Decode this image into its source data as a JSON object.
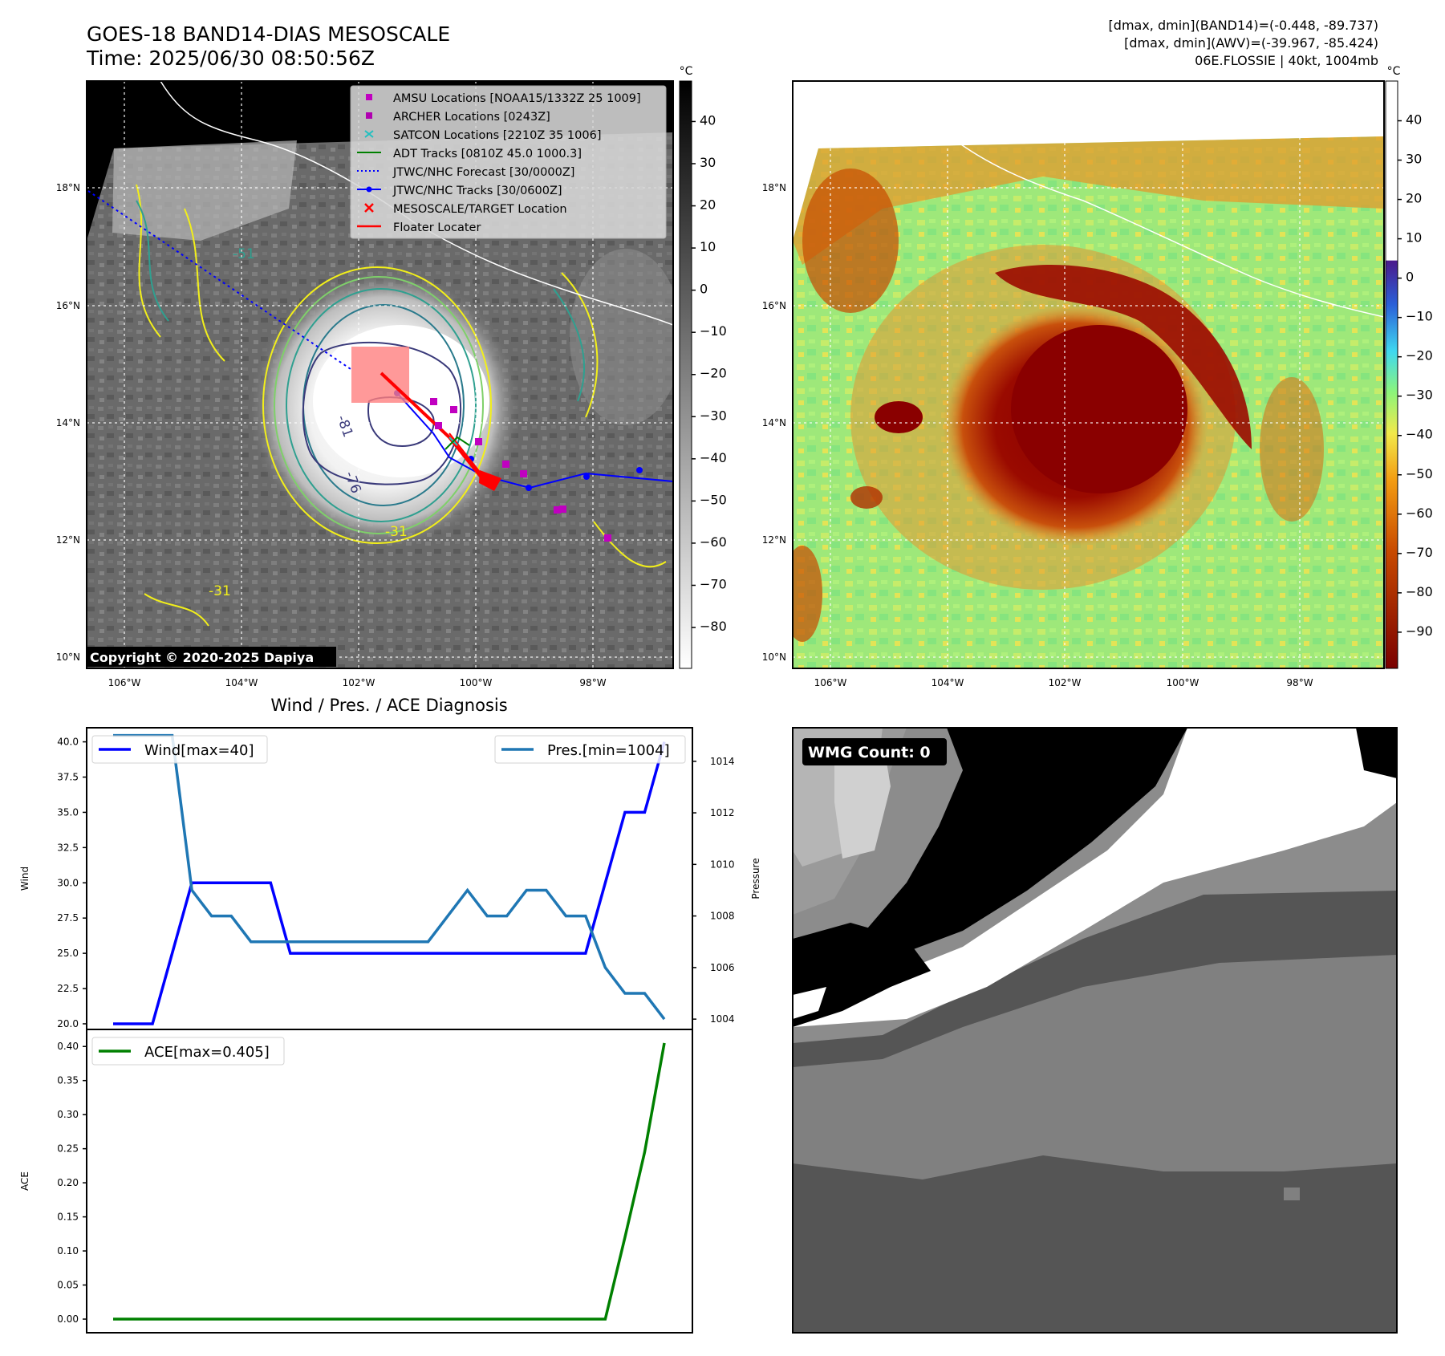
{
  "header": {
    "title_line1": "GOES-18 BAND14-DIAS MESOSCALE",
    "title_line2": "Time: 2025/06/30 08:50:56Z",
    "info_line1": "[dmax, dmin](BAND14)=(-0.448, -89.737)",
    "info_line2": "[dmax, dmin](AWV)=(-39.967, -85.424)",
    "info_line3": "06E.FLOSSIE | 40kt, 1004mb"
  },
  "map_axes": {
    "lon_labels": [
      "106°W",
      "104°W",
      "102°W",
      "100°W",
      "98°W"
    ],
    "lat_labels": [
      "18°N",
      "16°N",
      "14°N",
      "12°N",
      "10°N"
    ]
  },
  "colorbars": {
    "unit": "°C",
    "left_ticks": [
      "40",
      "30",
      "20",
      "10",
      "0",
      "−10",
      "−20",
      "−30",
      "−40",
      "−50",
      "−60",
      "−70",
      "−80"
    ],
    "right_ticks": [
      "40",
      "30",
      "20",
      "10",
      "0",
      "−10",
      "−20",
      "−30",
      "−40",
      "−50",
      "−60",
      "−70",
      "−80",
      "−90"
    ]
  },
  "legend": {
    "items": [
      {
        "label": "AMSU Locations [NOAA15/1332Z 25 1009]",
        "color": "#c000c0",
        "marker": "square"
      },
      {
        "label": "ARCHER Locations [0243Z]",
        "color": "#b000b0",
        "marker": "square"
      },
      {
        "label": "SATCON Locations [2210Z 35 1006]",
        "color": "#20c0c0",
        "marker": "x"
      },
      {
        "label": "ADT Tracks [0810Z 45.0 1000.3]",
        "color": "#008000",
        "marker": "line"
      },
      {
        "label": "JTWC/NHC Forecast [30/0000Z]",
        "color": "#0000ff",
        "marker": "dotted"
      },
      {
        "label": "JTWC/NHC Tracks [30/0600Z]",
        "color": "#0000ff",
        "marker": "line-dot"
      },
      {
        "label": "MESOSCALE/TARGET Location",
        "color": "#ff0000",
        "marker": "x"
      },
      {
        "label": "Floater Locater",
        "color": "#ff0000",
        "marker": "line"
      }
    ]
  },
  "contour_labels": [
    "-76",
    "-81",
    "-31",
    "-51",
    "-31"
  ],
  "copyright": "Copyright © 2020-2025 Dapiya",
  "wmg_label": "WMG Count: 0",
  "chart_data": [
    {
      "type": "line",
      "title": "Wind / Pres. / ACE Diagnosis",
      "ylabel": "Wind",
      "ylabel_right": "Pressure",
      "ylim": [
        19.6,
        41
      ],
      "ylim_right": [
        1003.6,
        1015.3
      ],
      "yticks": [
        "40.0",
        "37.5",
        "35.0",
        "32.5",
        "30.0",
        "27.5",
        "25.0",
        "22.5",
        "20.0"
      ],
      "yticks_right": [
        "1014",
        "1012",
        "1010",
        "1008",
        "1006",
        "1004"
      ],
      "series": [
        {
          "name": "Wind[max=40]",
          "color": "#0000ff",
          "values": [
            20,
            20,
            20,
            25,
            30,
            30,
            30,
            30,
            30,
            25,
            25,
            25,
            25,
            25,
            25,
            25,
            25,
            25,
            25,
            25,
            25,
            25,
            25,
            25,
            25,
            30,
            35,
            35,
            40
          ]
        },
        {
          "name": "Pres.[min=1004]",
          "color": "#1f77b4",
          "values": [
            1015,
            1015,
            1015,
            1015,
            1009,
            1008,
            1008,
            1007,
            1007,
            1007,
            1007,
            1007,
            1007,
            1007,
            1007,
            1007,
            1007,
            1008,
            1009,
            1008,
            1008,
            1009,
            1009,
            1008,
            1008,
            1006,
            1005,
            1005,
            1004
          ]
        }
      ]
    },
    {
      "type": "line",
      "ylabel": "ACE",
      "ylim": [
        -0.02,
        0.425
      ],
      "yticks": [
        "0.40",
        "0.35",
        "0.30",
        "0.25",
        "0.20",
        "0.15",
        "0.10",
        "0.05",
        "0.00"
      ],
      "series": [
        {
          "name": "ACE[max=0.405]",
          "color": "#008000",
          "values": [
            0,
            0,
            0,
            0,
            0,
            0,
            0,
            0,
            0,
            0,
            0,
            0,
            0,
            0,
            0,
            0,
            0,
            0,
            0,
            0,
            0,
            0,
            0,
            0,
            0,
            0,
            0.12,
            0.245,
            0.405
          ]
        }
      ]
    }
  ]
}
